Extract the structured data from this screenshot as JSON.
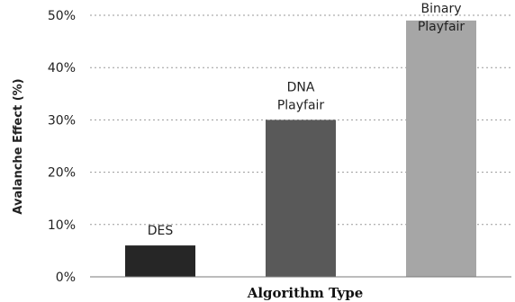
{
  "chart_data": {
    "type": "bar",
    "categories": [
      "DES",
      "DNA Playfair",
      "Binary Playfair"
    ],
    "bar_labels": [
      [
        "DES"
      ],
      [
        "DNA",
        "Playfair"
      ],
      [
        "Binary",
        "Playfair"
      ]
    ],
    "values": [
      6,
      30,
      49
    ],
    "colors": [
      "#262626",
      "#595959",
      "#a6a6a6"
    ],
    "ylabel": "Avalanche Effect (%)",
    "xlabel": "Algorithm Type",
    "ylim": [
      0,
      50
    ],
    "yticks": [
      0,
      10,
      20,
      30,
      40,
      50
    ],
    "ytick_labels": [
      "0%",
      "10%",
      "20%",
      "30%",
      "40%",
      "50%"
    ],
    "grid": true
  }
}
